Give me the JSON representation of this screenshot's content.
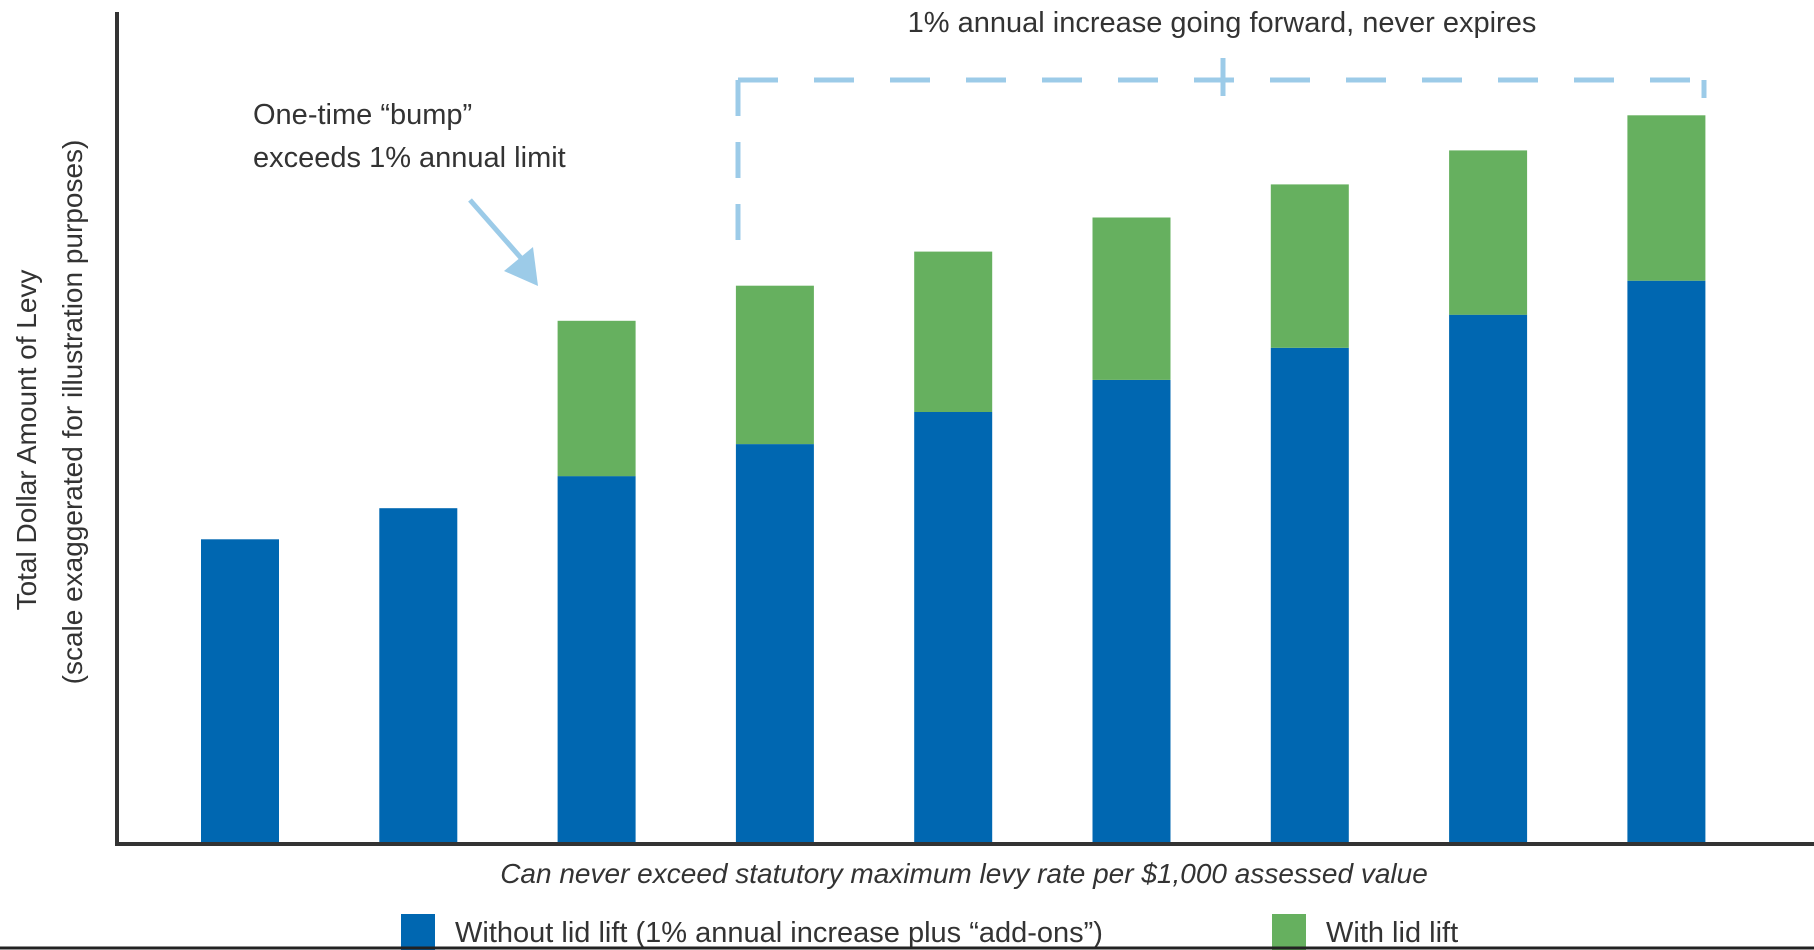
{
  "chart_data": {
    "type": "bar",
    "stacked": true,
    "categories": [
      "",
      "",
      "",
      "",
      "",
      "",
      "",
      "",
      ""
    ],
    "ylabel": "Total Dollar Amount of Levy",
    "ylabel_note": "(scale exaggerated for illustration purposes)",
    "xlabel": "Can never exceed statutory maximum levy rate per $1,000 assessed value",
    "ylim": [
      0,
      840
    ],
    "series": [
      {
        "name": "Without lid lift (1% annual increase plus “add-ons”)",
        "color": "#0067b1",
        "values": [
          302,
          333,
          365,
          397,
          429,
          461,
          493,
          526,
          560
        ]
      },
      {
        "name": "With lid lift",
        "color": "#66b05f",
        "values": [
          0,
          0,
          155,
          158,
          160,
          162,
          163,
          164,
          165
        ]
      }
    ],
    "annotations": {
      "bump_line1": "One-time “bump”",
      "bump_line2": "exceeds 1% annual limit",
      "bracket_label": "1% annual increase going forward, never expires"
    },
    "legend_position": "bottom",
    "grid": false,
    "axis_color": "#333333",
    "annotation_color": "#9ccbe8"
  }
}
